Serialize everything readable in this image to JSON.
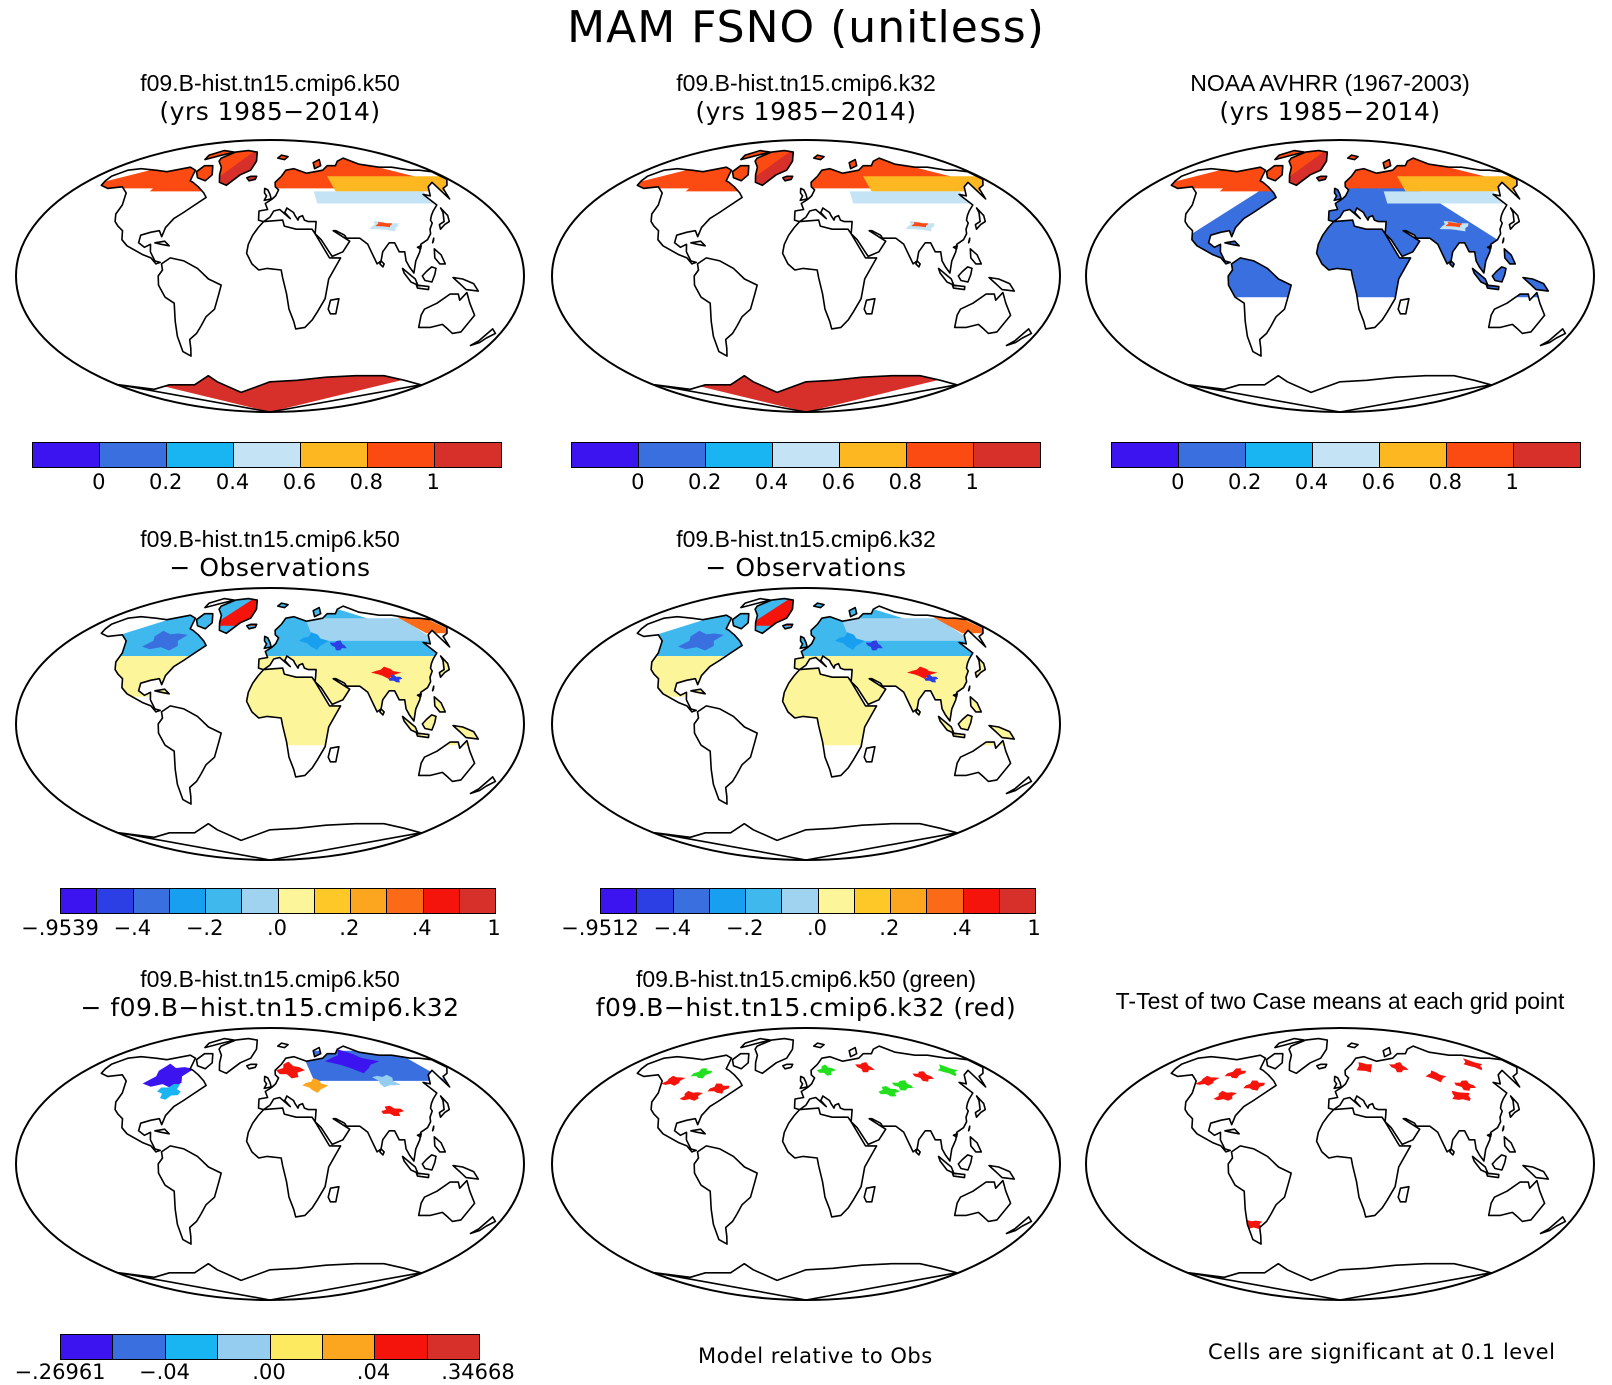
{
  "figure_title": "MAM FSNO (unitless)",
  "panels": [
    {
      "title_line1": "f09.B-hist.tn15.cmip6.k50",
      "title_line2": "(yrs 1985−2014)"
    },
    {
      "title_line1": "f09.B-hist.tn15.cmip6.k32",
      "title_line2": "(yrs 1985−2014)"
    },
    {
      "title_line1": "NOAA AVHRR (1967-2003)",
      "title_line2": "(yrs 1985−2014)"
    },
    {
      "title_line1": "f09.B-hist.tn15.cmip6.k50",
      "title_line2": "− Observations"
    },
    {
      "title_line1": "f09.B-hist.tn15.cmip6.k32",
      "title_line2": "− Observations"
    },
    {
      "title_line1": "f09.B-hist.tn15.cmip6.k50",
      "title_line2": "− f09.B−hist.tn15.cmip6.k32"
    },
    {
      "title_line1": "f09.B-hist.tn15.cmip6.k50 (green)",
      "title_line2": "f09.B−hist.tn15.cmip6.k32 (red)"
    },
    {
      "title_line1": "T-Test of two Case means at each grid point",
      "title_line2": ""
    }
  ],
  "colorbars": {
    "mean": {
      "colors": [
        "#3b14f0",
        "#3a6fe0",
        "#19b4f2",
        "#c4e3f5",
        "#fdb720",
        "#fb4a12",
        "#d7302b"
      ],
      "labels": [
        "0",
        "0.2",
        "0.4",
        "0.6",
        "0.8",
        "1"
      ]
    },
    "diff_k50": {
      "colors": [
        "#3b14f0",
        "#2c3fe4",
        "#3a6fe0",
        "#199ff0",
        "#3fb8ee",
        "#9fd3f0",
        "#fdf59a",
        "#fdc828",
        "#fca51e",
        "#fb6a16",
        "#f5140c",
        "#d7302b"
      ],
      "labels": [
        "−.9539",
        "−.4",
        "−.2",
        ".0",
        ".2",
        ".4",
        "1"
      ]
    },
    "diff_k32": {
      "colors": [
        "#3b14f0",
        "#2c3fe4",
        "#3a6fe0",
        "#199ff0",
        "#3fb8ee",
        "#9fd3f0",
        "#fdf59a",
        "#fdc828",
        "#fca51e",
        "#fb6a16",
        "#f5140c",
        "#d7302b"
      ],
      "labels": [
        "−.9512",
        "−.4",
        "−.2",
        ".0",
        ".2",
        ".4",
        "1"
      ]
    },
    "case_diff": {
      "colors": [
        "#3b14f0",
        "#3a6fe0",
        "#19b4f2",
        "#94cdf0",
        "#fdea60",
        "#fca51e",
        "#f5140c",
        "#d7302b"
      ],
      "labels": [
        "−.26961",
        "−.04",
        ".00",
        ".04",
        ".34668"
      ]
    }
  },
  "notes": {
    "model_relative": "Model relative to Obs",
    "significance": "Cells are significant at 0.1 level"
  },
  "map_colors": {
    "outline": "#000000",
    "ocean": "#ffffff",
    "land_low": "#3a6fe0",
    "snow_high": "#fb4a12",
    "antarctica": "#d7302b",
    "diff_neutral": "#fdf59a",
    "diff_case": "#fdea60",
    "sig_red": "#f5140c",
    "sig_green": "#22e01e"
  }
}
